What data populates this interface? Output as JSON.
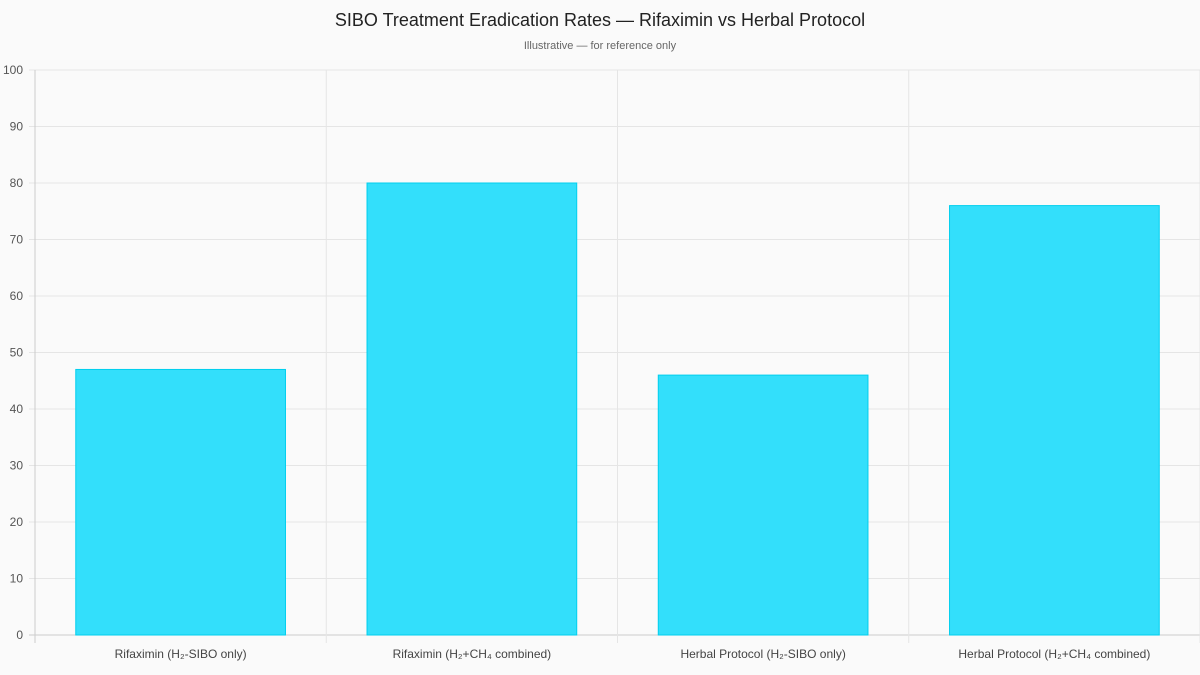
{
  "chart_data": {
    "type": "bar",
    "title": "SIBO Treatment Eradication Rates — Rifaximin vs Herbal Protocol",
    "subtitle": "Illustrative — for reference only",
    "categories": [
      "Rifaximin (H₂-SIBO only)",
      "Rifaximin (H₂+CH₄ combined)",
      "Herbal Protocol (H₂-SIBO only)",
      "Herbal Protocol (H₂+CH₄ combined)"
    ],
    "values": [
      47,
      80,
      46,
      76
    ],
    "ylim": [
      0,
      100
    ],
    "yticks": [
      0,
      10,
      20,
      30,
      40,
      50,
      60,
      70,
      80,
      90,
      100
    ],
    "xlabel": "",
    "ylabel": "",
    "grid": true,
    "legend": "none",
    "colors": {
      "bar_fill": "#33dffb",
      "bar_border": "#00cfee",
      "grid": "#e5e5e5"
    }
  }
}
